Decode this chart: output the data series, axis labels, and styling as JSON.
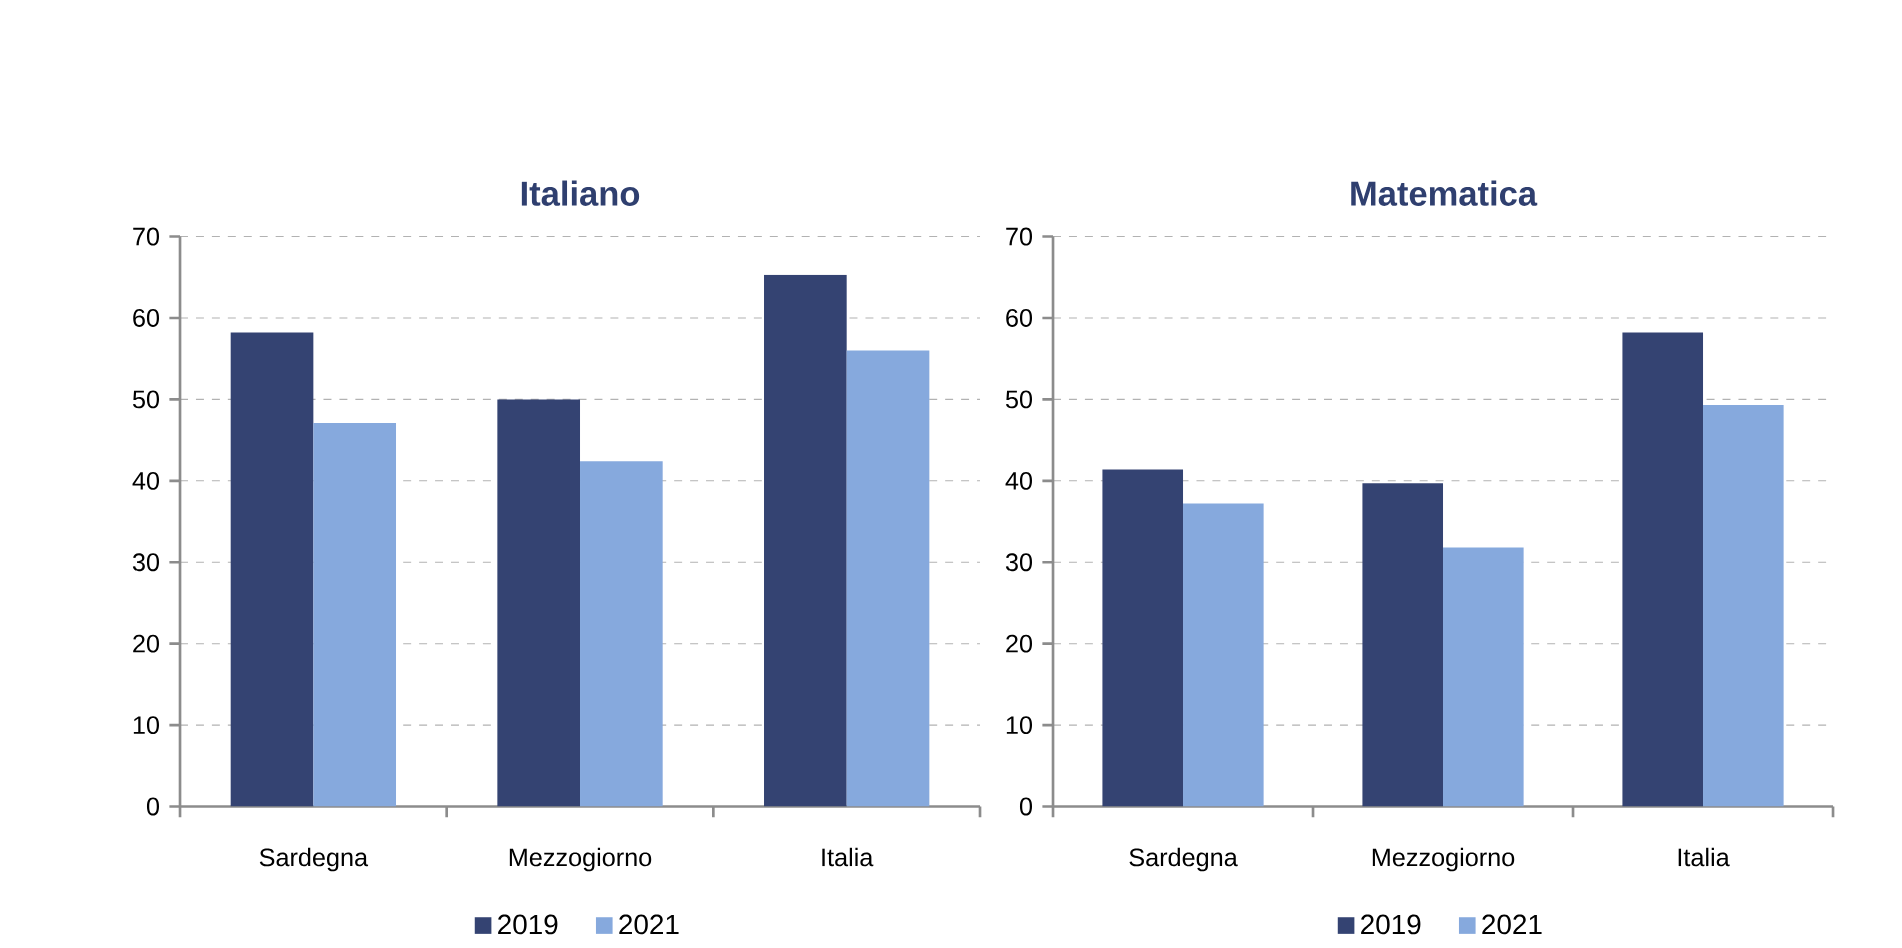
{
  "chart_data": [
    {
      "type": "bar",
      "title": "Italiano",
      "categories": [
        "Sardegna",
        "Mezzogiorno",
        "Italia"
      ],
      "series": [
        {
          "name": "2019",
          "color": "#344372",
          "values": [
            58.2,
            50.0,
            65.3
          ]
        },
        {
          "name": "2021",
          "color": "#86a9dd",
          "values": [
            47.1,
            42.4,
            56.0
          ]
        }
      ],
      "ylim": [
        0,
        70
      ],
      "yticks": [
        0,
        10,
        20,
        30,
        40,
        50,
        60,
        70
      ],
      "grid": "y",
      "legend": "bottom"
    },
    {
      "type": "bar",
      "title": "Matematica",
      "categories": [
        "Sardegna",
        "Mezzogiorno",
        "Italia"
      ],
      "series": [
        {
          "name": "2019",
          "color": "#344372",
          "values": [
            41.4,
            39.7,
            58.2
          ]
        },
        {
          "name": "2021",
          "color": "#86a9dd",
          "values": [
            37.2,
            31.8,
            49.3
          ]
        }
      ],
      "ylim": [
        0,
        70
      ],
      "yticks": [
        0,
        10,
        20,
        30,
        40,
        50,
        60,
        70
      ],
      "grid": "y",
      "legend": "bottom"
    }
  ]
}
